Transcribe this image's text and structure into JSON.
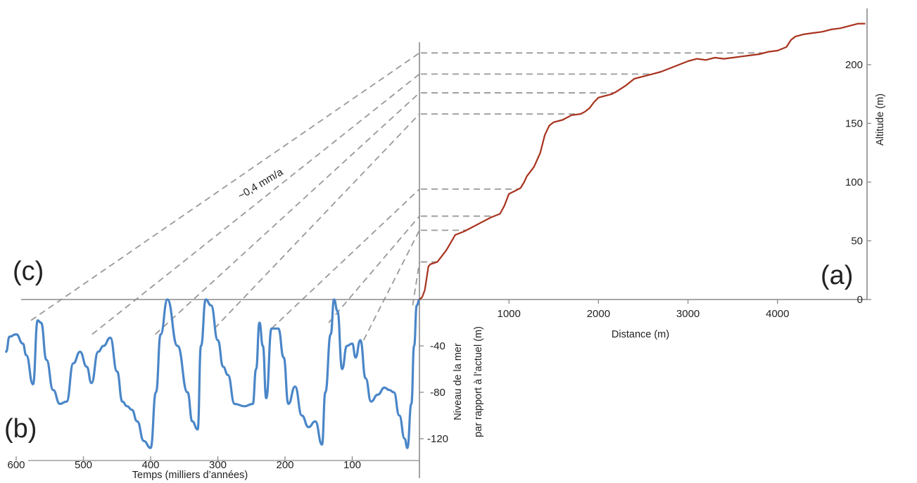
{
  "chart_data": [
    {
      "type": "line",
      "panel_label": "(a)",
      "xlabel": "Distance (m)",
      "ylabel": "Altitude (m)",
      "xlim": [
        0,
        5000
      ],
      "ylim": [
        0,
        235
      ],
      "xticks": [
        1000,
        2000,
        3000,
        4000
      ],
      "yticks": [
        0,
        50,
        100,
        150,
        200
      ],
      "color": "#a8321e",
      "terrace_levels": [
        210,
        192,
        176,
        158,
        94,
        71,
        59,
        32
      ],
      "series": [
        {
          "x": [
            0,
            30,
            60,
            80,
            100,
            120,
            200,
            300,
            400,
            500,
            600,
            700,
            800,
            900,
            950,
            1000,
            1080,
            1130,
            1170,
            1200,
            1280,
            1350,
            1400,
            1450,
            1500,
            1600,
            1700,
            1800,
            1850,
            1900,
            1950,
            2000,
            2100,
            2150,
            2200,
            2300,
            2400,
            2500,
            2600,
            2700,
            2800,
            2900,
            3000,
            3100,
            3200,
            3300,
            3400,
            3500,
            3600,
            3700,
            3800,
            3900,
            4000,
            4100,
            4150,
            4200,
            4300,
            4400,
            4500,
            4600,
            4700,
            4800,
            4900,
            4980
          ],
          "y": [
            0,
            2,
            8,
            18,
            28,
            30,
            32,
            42,
            55,
            58,
            62,
            66,
            70,
            73,
            80,
            90,
            93,
            95,
            100,
            105,
            113,
            125,
            140,
            148,
            151,
            153,
            157,
            158,
            160,
            163,
            168,
            172,
            174,
            175,
            177,
            182,
            188,
            190,
            192,
            194,
            197,
            200,
            203,
            205,
            204,
            206,
            205,
            206,
            207,
            208,
            209,
            211,
            212,
            215,
            221,
            224,
            226,
            227,
            228,
            230,
            231,
            233,
            235,
            235
          ]
        }
      ]
    },
    {
      "type": "line",
      "panel_label": "(b)",
      "xlabel": "Temps (milliers d’années)",
      "ylabel": "Niveau de la mer par rapport à l’actuel (m)",
      "ylabel_lines": [
        "Niveau de la mer",
        "par rapport à l’actuel (m)"
      ],
      "xlim": [
        600,
        0
      ],
      "ylim": [
        -130,
        0
      ],
      "xticks": [
        600,
        500,
        400,
        300,
        200,
        100
      ],
      "yticks": [
        -40,
        -80,
        -120
      ],
      "color": "#4a86c8",
      "series": [
        {
          "x": [
            615,
            610,
            600,
            590,
            585,
            575,
            568,
            563,
            555,
            545,
            535,
            525,
            515,
            505,
            495,
            488,
            478,
            470,
            460,
            450,
            442,
            435,
            428,
            420,
            410,
            400,
            392,
            385,
            375,
            360,
            345,
            338,
            330,
            325,
            318,
            310,
            300,
            292,
            285,
            275,
            260,
            248,
            243,
            238,
            233,
            228,
            220,
            210,
            202,
            195,
            185,
            175,
            165,
            155,
            145,
            140,
            132,
            127,
            122,
            115,
            108,
            100,
            95,
            88,
            80,
            72,
            62,
            52,
            45,
            38,
            30,
            22,
            18,
            12,
            8,
            4,
            0
          ],
          "y": [
            -45,
            -32,
            -30,
            -38,
            -48,
            -73,
            -18,
            -20,
            -52,
            -78,
            -90,
            -88,
            -55,
            -45,
            -58,
            -72,
            -45,
            -40,
            -33,
            -62,
            -88,
            -92,
            -95,
            -105,
            -122,
            -128,
            -80,
            -30,
            0,
            -40,
            -80,
            -105,
            -112,
            -40,
            0,
            -5,
            -35,
            -58,
            -65,
            -90,
            -92,
            -90,
            -60,
            -20,
            -40,
            -85,
            -25,
            -25,
            -50,
            -90,
            -75,
            -100,
            -110,
            -105,
            -125,
            -80,
            -30,
            0,
            -10,
            -60,
            -40,
            -38,
            -50,
            -35,
            -68,
            -88,
            -82,
            -76,
            -78,
            -80,
            -100,
            -120,
            -128,
            -90,
            -40,
            -5,
            0
          ]
        }
      ]
    }
  ],
  "annotations": {
    "uplift_rate": "~0,4 mm/a",
    "panel_c_label": "(c)"
  }
}
